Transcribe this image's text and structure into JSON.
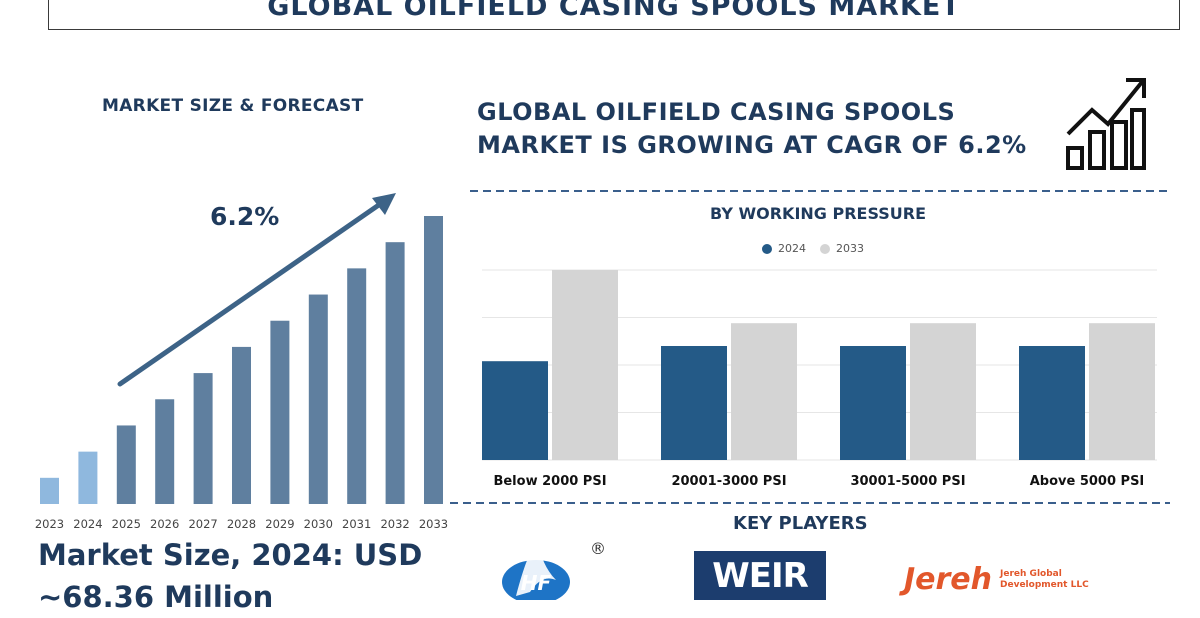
{
  "header": {
    "title": "Global Oilfield Casing Spools Market"
  },
  "left_panel": {
    "heading": "MARKET SIZE & FORECAST",
    "cagr_label": "6.2%",
    "market_size_line1": "Market Size, 2024: USD",
    "market_size_line2": "~68.36 Million"
  },
  "right_panel": {
    "headline_line1": "GLOBAL OILFIELD CASING SPOOLS",
    "headline_line2": "MARKET IS GROWING AT CAGR OF 6.2%",
    "chart_title": "BY WORKING PRESSURE",
    "key_players_title": "KEY PLAYERS"
  },
  "logos": {
    "hf_text": "HF",
    "hf_registered": "®",
    "weir_text": "WEIR",
    "jereh_text": "Jereh",
    "jereh_sub_line1": "Jereh Global",
    "jereh_sub_line2": "Development LLC"
  },
  "colors": {
    "navy": "#1f3a5c",
    "bar_light": "#8fb8de",
    "bar_mid": "#5f7f9f",
    "series_2024": "#245a87",
    "series_2033": "#d4d4d4",
    "jereh_orange": "#e2572b"
  },
  "chart_data": [
    {
      "type": "bar",
      "title": "",
      "categories": [
        "2023",
        "2024",
        "2025",
        "2026",
        "2027",
        "2028",
        "2029",
        "2030",
        "2031",
        "2032",
        "2033"
      ],
      "values": [
        1,
        2,
        3,
        4,
        5,
        6,
        7,
        8,
        9,
        10,
        11
      ],
      "annotation": "6.2%",
      "ylim": [
        0,
        11
      ],
      "grid": false
    },
    {
      "type": "bar",
      "title": "BY WORKING PRESSURE",
      "categories": [
        "Below 2000 PSI",
        "20001-3000 PSI",
        "30001-5000 PSI",
        "Above 5000 PSI"
      ],
      "series": [
        {
          "name": "2024",
          "values": [
            26,
            30,
            30,
            30
          ]
        },
        {
          "name": "2033",
          "values": [
            50,
            36,
            36,
            36
          ]
        }
      ],
      "ylim": [
        0,
        50
      ],
      "grid": true,
      "legend": "top-center"
    }
  ]
}
